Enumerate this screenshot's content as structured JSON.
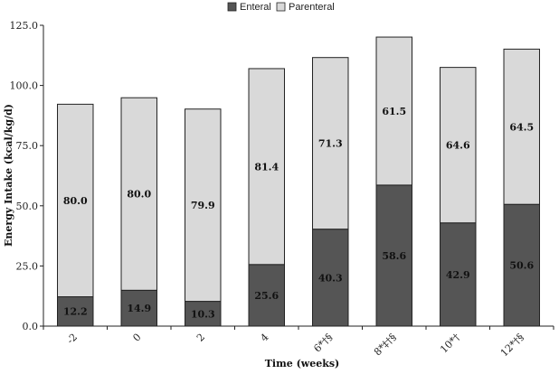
{
  "chart_data": {
    "type": "bar",
    "stacked": true,
    "categories": [
      "-2",
      "0",
      "2",
      "4",
      "6*†§",
      "8*‡†§",
      "10*†",
      "12*†§"
    ],
    "series": [
      {
        "name": "Enteral",
        "values": [
          12.2,
          14.9,
          10.3,
          25.6,
          40.3,
          58.6,
          42.9,
          50.6
        ],
        "labels": [
          "12.2",
          "14.9",
          "10.3",
          "25.6",
          "40.3",
          "58.6",
          "42.9",
          "50.6"
        ],
        "color": "#555555"
      },
      {
        "name": "Parenteral",
        "values": [
          80.0,
          80.0,
          79.9,
          81.4,
          71.3,
          61.5,
          64.6,
          64.5
        ],
        "labels": [
          "80.0",
          "80.0",
          "79.9",
          "81.4",
          "71.3",
          "61.5",
          "64.6",
          "64.5"
        ],
        "color": "#d9d9d9"
      }
    ],
    "xlabel": "Time (weeks)",
    "ylabel": "Energy Intake (kcal/kg/d)",
    "ylim": [
      0,
      125
    ],
    "yticks": [
      0,
      25,
      50,
      75,
      100,
      125
    ],
    "ytick_labels": [
      "0.0",
      "25.0",
      "50.0",
      "75.0",
      "100.0",
      "125.0"
    ],
    "grid": false,
    "legend_position": "top-center"
  }
}
